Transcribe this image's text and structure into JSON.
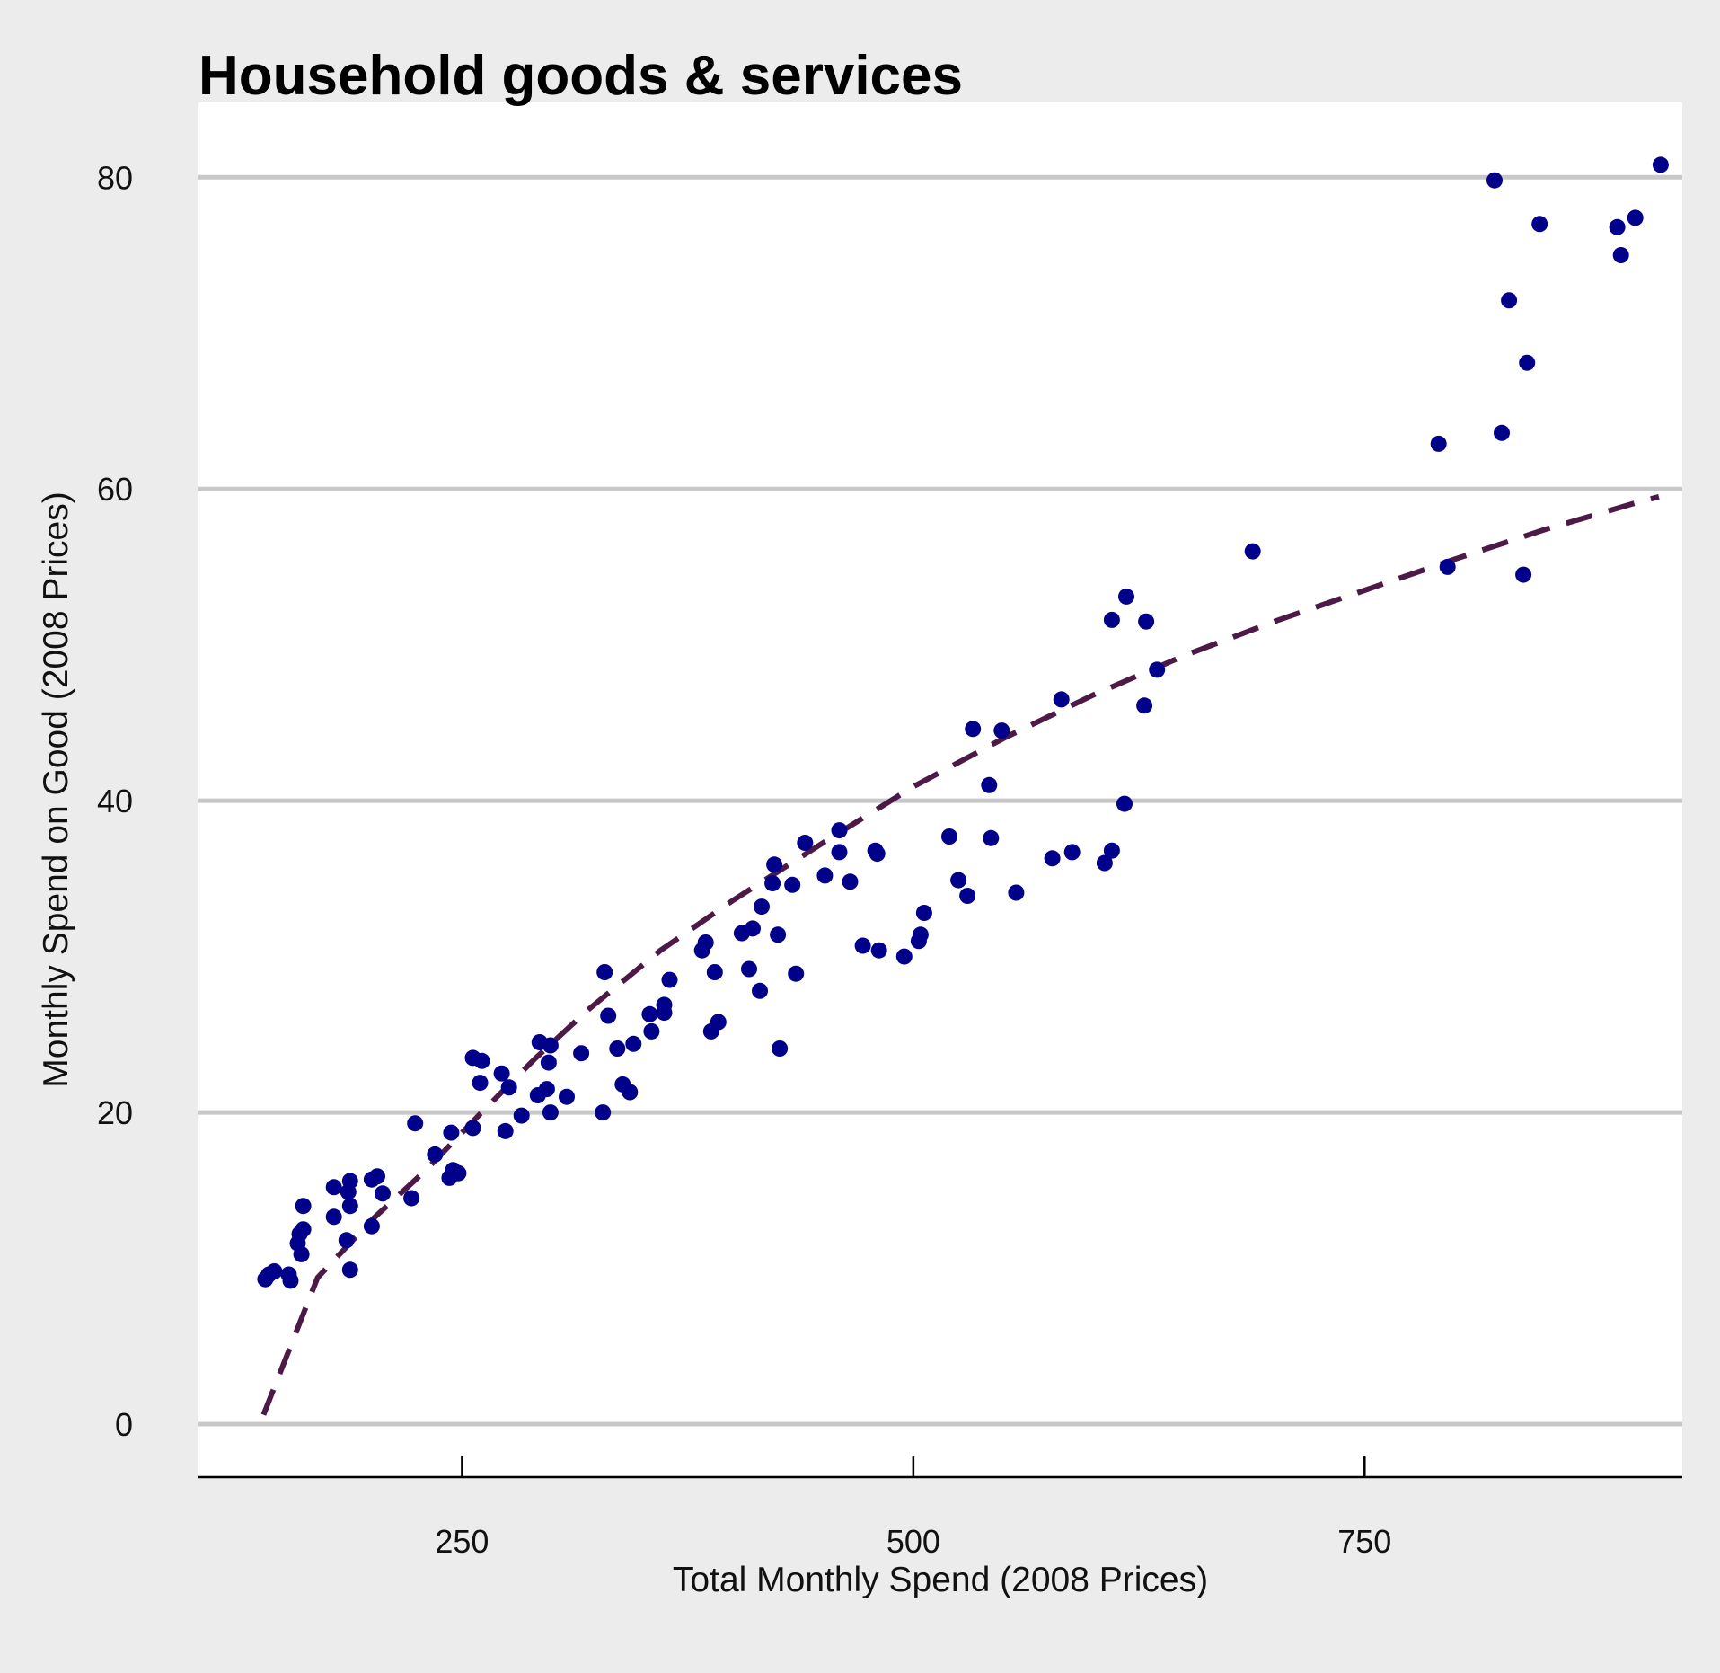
{
  "chart_data": {
    "type": "scatter",
    "title": "Household goods & services",
    "xlabel": "Total Monthly Spend (2008 Prices)",
    "ylabel": "Monthly Spend on Good (2008 Prices)",
    "xlim": [
      104,
      926
    ],
    "ylim": [
      -3.4,
      84.8
    ],
    "xticks": [
      250,
      500,
      750
    ],
    "yticks": [
      0,
      20,
      40,
      60,
      80
    ],
    "grid": "horizontal",
    "colors": {
      "points": "#00008b",
      "trend": "#4d1a47",
      "grid": "#c8c8c8",
      "panel": "#ffffff",
      "background": "#ececec"
    },
    "series": [
      {
        "type": "scatter",
        "points": [
          [
            141,
            9.3
          ],
          [
            143,
            9.6
          ],
          [
            146,
            9.8
          ],
          [
            154,
            9.6
          ],
          [
            155,
            9.2
          ],
          [
            159,
            11.6
          ],
          [
            160,
            12.2
          ],
          [
            161,
            10.9
          ],
          [
            162,
            12.5
          ],
          [
            162,
            14.0
          ],
          [
            179,
            13.3
          ],
          [
            179,
            15.2
          ],
          [
            186,
            11.8
          ],
          [
            187,
            14.9
          ],
          [
            188,
            14.0
          ],
          [
            188,
            15.6
          ],
          [
            188,
            9.9
          ],
          [
            200,
            12.7
          ],
          [
            200,
            15.7
          ],
          [
            203,
            15.9
          ],
          [
            206,
            14.8
          ],
          [
            222,
            14.5
          ],
          [
            224,
            19.3
          ],
          [
            235,
            17.3
          ],
          [
            243,
            15.8
          ],
          [
            244,
            18.7
          ],
          [
            245,
            16.3
          ],
          [
            248,
            16.1
          ],
          [
            256,
            19.0
          ],
          [
            256,
            23.5
          ],
          [
            260,
            21.9
          ],
          [
            261,
            23.3
          ],
          [
            272,
            22.5
          ],
          [
            274,
            18.8
          ],
          [
            276,
            21.6
          ],
          [
            283,
            19.8
          ],
          [
            292,
            21.1
          ],
          [
            293,
            24.5
          ],
          [
            297,
            21.5
          ],
          [
            298,
            23.2
          ],
          [
            299,
            24.3
          ],
          [
            299,
            20.0
          ],
          [
            308,
            21.0
          ],
          [
            316,
            23.8
          ],
          [
            328,
            20.0
          ],
          [
            329,
            29.0
          ],
          [
            331,
            26.2
          ],
          [
            336,
            24.1
          ],
          [
            339,
            21.8
          ],
          [
            343,
            21.3
          ],
          [
            345,
            24.4
          ],
          [
            354,
            26.3
          ],
          [
            355,
            25.2
          ],
          [
            362,
            26.4
          ],
          [
            362,
            26.9
          ],
          [
            365,
            28.5
          ],
          [
            383,
            30.4
          ],
          [
            385,
            30.9
          ],
          [
            388,
            25.2
          ],
          [
            390,
            29.0
          ],
          [
            392,
            25.8
          ],
          [
            405,
            31.5
          ],
          [
            409,
            29.2
          ],
          [
            411,
            31.8
          ],
          [
            415,
            27.8
          ],
          [
            416,
            33.2
          ],
          [
            422,
            34.7
          ],
          [
            423,
            35.9
          ],
          [
            425,
            31.4
          ],
          [
            426,
            24.1
          ],
          [
            433,
            34.6
          ],
          [
            435,
            28.9
          ],
          [
            440,
            37.3
          ],
          [
            451,
            35.2
          ],
          [
            459,
            38.1
          ],
          [
            459,
            36.7
          ],
          [
            465,
            34.8
          ],
          [
            472,
            30.7
          ],
          [
            479,
            36.8
          ],
          [
            480,
            36.6
          ],
          [
            481,
            30.4
          ],
          [
            495,
            30.0
          ],
          [
            503,
            31.0
          ],
          [
            504,
            31.4
          ],
          [
            506,
            32.8
          ],
          [
            520,
            37.7
          ],
          [
            525,
            34.9
          ],
          [
            530,
            33.9
          ],
          [
            533,
            44.6
          ],
          [
            542,
            41.0
          ],
          [
            543,
            37.6
          ],
          [
            549,
            44.5
          ],
          [
            557,
            34.1
          ],
          [
            577,
            36.3
          ],
          [
            582,
            46.5
          ],
          [
            588,
            36.7
          ],
          [
            606,
            36.0
          ],
          [
            610,
            51.6
          ],
          [
            610,
            36.8
          ],
          [
            617,
            39.8
          ],
          [
            618,
            53.1
          ],
          [
            628,
            46.1
          ],
          [
            629,
            51.5
          ],
          [
            635,
            48.4
          ],
          [
            688,
            56.0
          ],
          [
            791,
            62.9
          ],
          [
            796,
            55.0
          ],
          [
            822,
            79.8
          ],
          [
            826,
            63.6
          ],
          [
            830,
            72.1
          ],
          [
            838,
            54.5
          ],
          [
            840,
            68.1
          ],
          [
            847,
            77.0
          ],
          [
            890,
            76.8
          ],
          [
            892,
            75.0
          ],
          [
            900,
            77.4
          ],
          [
            914,
            80.8
          ]
        ]
      },
      {
        "type": "line",
        "style": "dashed",
        "x": [
          140,
          170,
          200,
          230,
          260,
          290,
          320,
          360,
          400,
          450,
          500,
          550,
          600,
          650,
          700,
          750,
          800,
          850,
          900,
          913
        ],
        "y": [
          0.6,
          9.4,
          13.1,
          16.3,
          19.9,
          23.4,
          26.6,
          30.4,
          33.6,
          37.3,
          40.9,
          44.0,
          46.8,
          49.3,
          51.5,
          53.5,
          55.5,
          57.4,
          59.1,
          59.5
        ]
      }
    ]
  }
}
